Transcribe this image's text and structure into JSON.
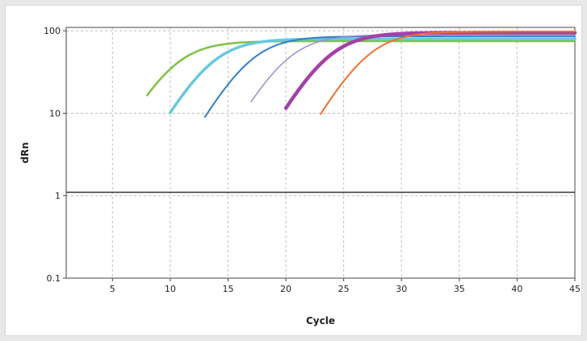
{
  "chart_data": {
    "type": "line",
    "title": "",
    "xlabel": "Cycle",
    "ylabel": "dRn",
    "x_ticks": [
      5,
      10,
      15,
      20,
      25,
      30,
      35,
      40,
      45
    ],
    "x_range": [
      1,
      45
    ],
    "y_ticks": [
      0.1,
      1,
      10,
      100
    ],
    "y_tick_labels": [
      "0.1",
      "1",
      "10",
      "100"
    ],
    "y_range": [
      0.1,
      110
    ],
    "y_scale": "log",
    "grid": true,
    "threshold": 1.1,
    "threshold_color": "#333333",
    "series": [
      {
        "color": "#7cc242",
        "start": 8,
        "midpoint": 10.3,
        "plateau": 75,
        "width": 2.5
      },
      {
        "color": "#66c8e0",
        "start": 10,
        "midpoint": 13.5,
        "plateau": 80,
        "width": 3.5
      },
      {
        "color": "#2f7fc8",
        "start": 13,
        "midpoint": 16.9,
        "plateau": 86,
        "width": 2
      },
      {
        "color": "#9a8ed0",
        "start": 17,
        "midpoint": 20.1,
        "plateau": 90,
        "width": 1.5
      },
      {
        "color": "#a540a8",
        "start": 20,
        "midpoint": 23.6,
        "plateau": 95,
        "width": 4.5
      },
      {
        "color": "#f07030",
        "start": 23,
        "midpoint": 27.0,
        "plateau": 98,
        "width": 2
      }
    ],
    "x_end": 45
  }
}
